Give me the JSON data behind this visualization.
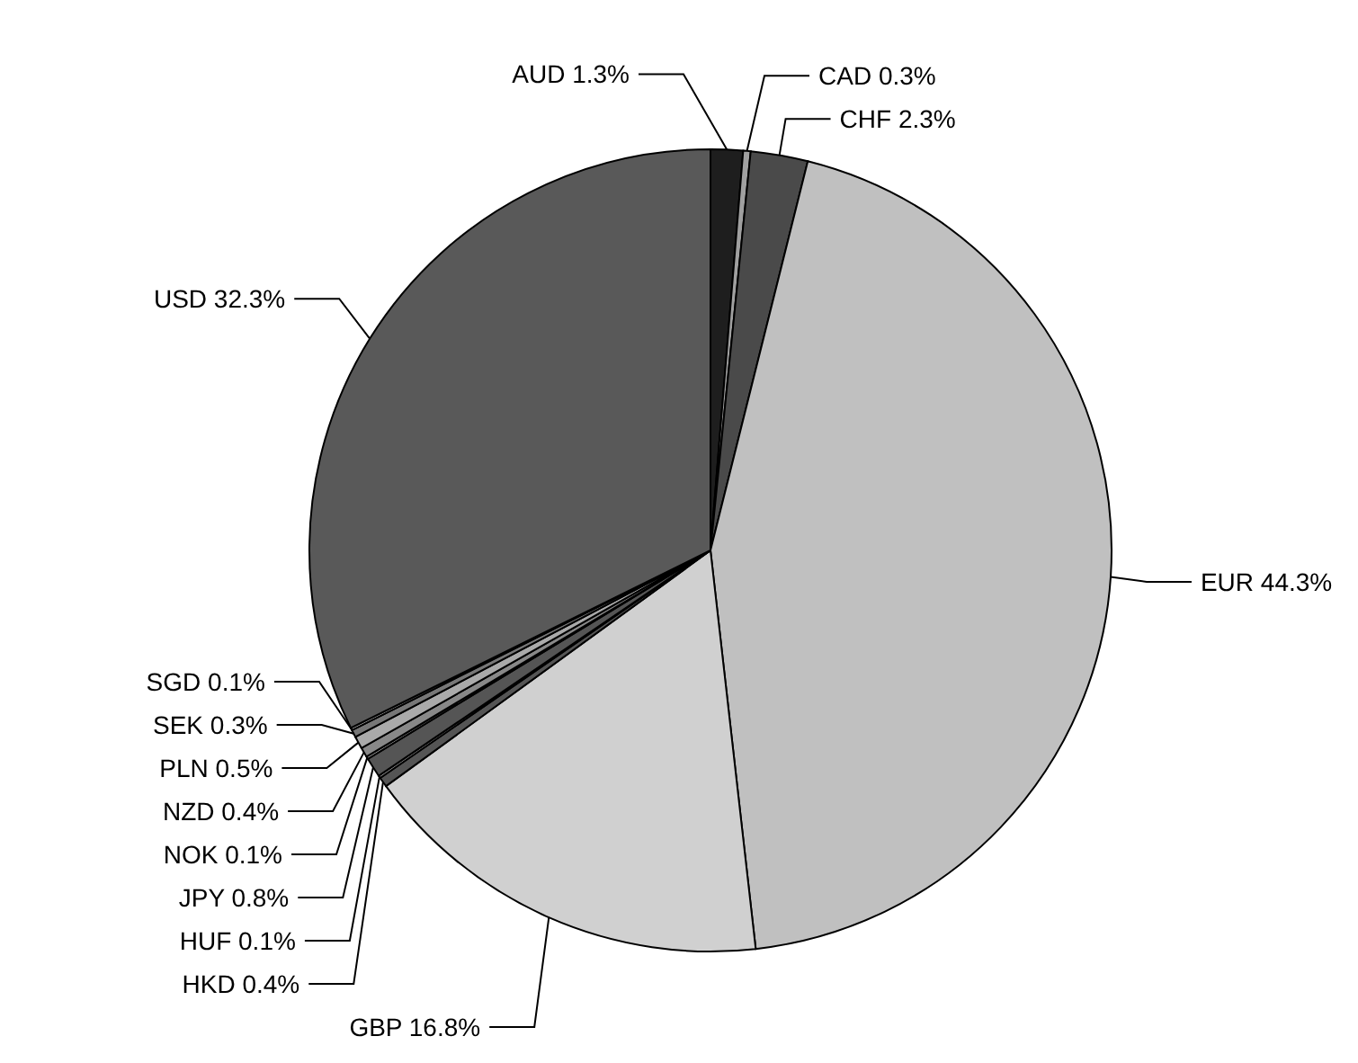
{
  "chart_data": {
    "type": "pie",
    "categories": [
      "AUD",
      "CAD",
      "CHF",
      "EUR",
      "GBP",
      "HKD",
      "HUF",
      "JPY",
      "NOK",
      "NZD",
      "PLN",
      "SEK",
      "SGD",
      "USD"
    ],
    "values": [
      1.3,
      0.3,
      2.3,
      44.3,
      16.8,
      0.4,
      0.1,
      0.8,
      0.1,
      0.4,
      0.5,
      0.3,
      0.1,
      32.3
    ],
    "colors": [
      "#1e1e1e",
      "#a0a0a0",
      "#4a4a4a",
      "#c0c0c0",
      "#d0d0d0",
      "#555555",
      "#aaaaaa",
      "#555555",
      "#bbbbbb",
      "#888888",
      "#aaaaaa",
      "#777777",
      "#cccccc",
      "#595959"
    ],
    "value_labels": [
      "1.3%",
      "0.3%",
      "2.3%",
      "44.3%",
      "16.8%",
      "0.4%",
      "0.1%",
      "0.8%",
      "0.1%",
      "0.4%",
      "0.5%",
      "0.3%",
      "0.1%",
      "32.3%"
    ]
  }
}
